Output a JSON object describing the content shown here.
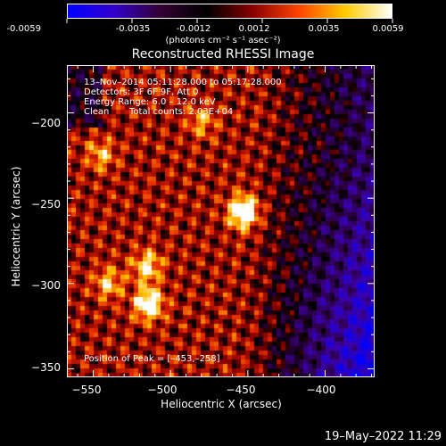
{
  "colorbar": {
    "ticks": [
      "-0.0059",
      "-0.0035",
      "-0.0012",
      "0.0012",
      "0.0035",
      "0.0059"
    ],
    "units": "(photons cm⁻² s⁻¹ asec⁻²)",
    "colors": [
      "#0000ff",
      "#3300cc",
      "#330033",
      "#000000",
      "#880000",
      "#ff4400",
      "#ffcc00",
      "#ffffff"
    ]
  },
  "chart_data": {
    "type": "heatmap",
    "title": "Reconstructed RHESSI Image",
    "xlabel": "Heliocentric X (arcsec)",
    "ylabel": "Heliocentric Y (arcsec)",
    "xlim": [
      -567,
      -368
    ],
    "ylim": [
      -355,
      -172
    ],
    "xticks": [
      -550,
      -500,
      -450,
      -400
    ],
    "xtick_labels": [
      "−550",
      "−500",
      "−450",
      "−400"
    ],
    "yticks": [
      -200,
      -250,
      -300,
      -350
    ],
    "ytick_labels": [
      "−200",
      "−250",
      "−300",
      "−350"
    ],
    "sources": [
      {
        "x": -453,
        "y": -258,
        "intensity": 1.0
      },
      {
        "x": -514,
        "y": -312,
        "intensity": 0.85
      },
      {
        "x": -515,
        "y": -290,
        "intensity": 0.6
      },
      {
        "x": -545,
        "y": -225,
        "intensity": 0.45
      },
      {
        "x": -480,
        "y": -205,
        "intensity": 0.4
      },
      {
        "x": -540,
        "y": -300,
        "intensity": 0.5
      }
    ],
    "peak_position": [
      -453,
      -258
    ]
  },
  "info": {
    "time_range": "13–Nov–2014 05:11:28.000 to 05:17:28.000",
    "detectors": "Detectors: 3F 6F 9F, Att 0",
    "energy": "Energy Range: 6.0 – 12.0 keV",
    "method": "Clean",
    "counts": "Total counts: 2.03E+04",
    "peak": "Position of Peak = [–453,–258]"
  },
  "footer_date": "19–May–2022 11:29"
}
